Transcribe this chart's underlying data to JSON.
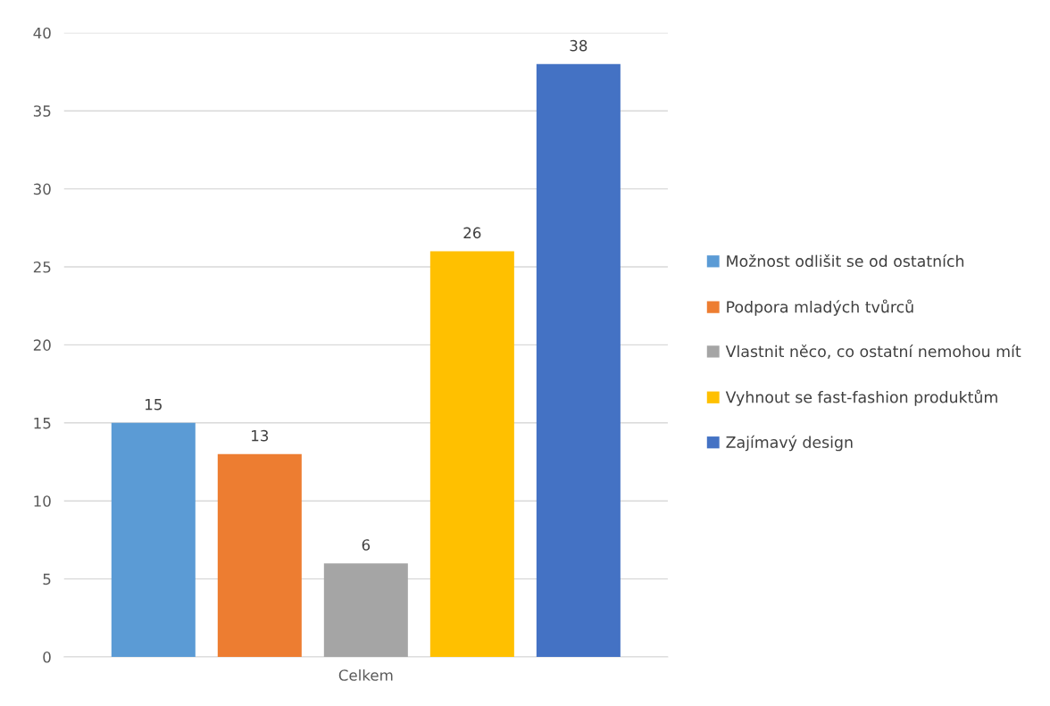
{
  "chart_data": {
    "type": "bar",
    "categories": [
      "Celkem"
    ],
    "series": [
      {
        "name": "Možnost odlišit se od ostatních",
        "color": "#5b9bd5",
        "values": [
          15
        ]
      },
      {
        "name": "Podpora mladých tvůrců",
        "color": "#ed7d31",
        "values": [
          13
        ]
      },
      {
        "name": "Vlastnit něco, co ostatní nemohou mít",
        "color": "#a5a5a5",
        "values": [
          6
        ]
      },
      {
        "name": "Vyhnout se fast-fashion produktům",
        "color": "#ffc000",
        "values": [
          26
        ]
      },
      {
        "name": "Zajímavý design",
        "color": "#4472c4",
        "values": [
          38
        ]
      }
    ],
    "ylim": [
      0,
      40
    ],
    "yticks": [
      0,
      5,
      10,
      15,
      20,
      25,
      30,
      35,
      40
    ],
    "grid": "y",
    "legend": "right",
    "data_labels": true
  }
}
